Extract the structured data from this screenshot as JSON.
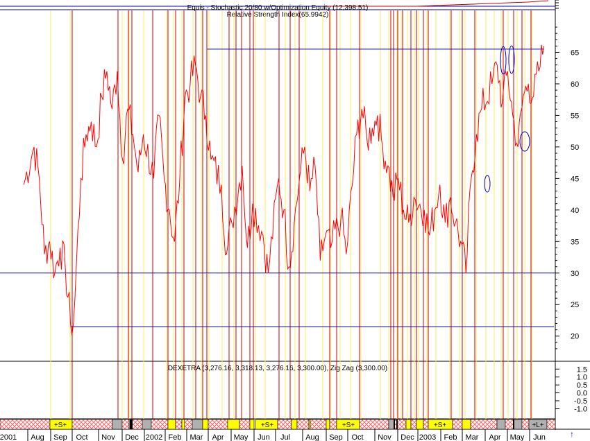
{
  "header": {
    "top_caption": "Equis - Stochastic 20/80 w/Optimization Equity (12,398.51)",
    "title": "Relative Strength Index(65.9942)"
  },
  "lower_caption": "DEXETRA (3,276.16, 3,318.13, 3,276.16, 3,300.00), Zig Zag (3,300.00)",
  "x_axis": {
    "labels": [
      "2001",
      "Aug",
      "Sep",
      "Oct",
      "Nov",
      "Dec",
      "2002",
      "Feb",
      "Mar",
      "Apr",
      "May",
      "Jun",
      "Jul",
      "Aug",
      "Sep",
      "Oct",
      "Nov",
      "Dec",
      "2003",
      "Feb",
      "Mar",
      "Apr",
      "May",
      "Jun"
    ],
    "nav_arrow": "↑"
  },
  "colors": {
    "rsi": "#ff0000",
    "level_lines": "#0000aa",
    "sell_lines": "#cc0000",
    "buy_lines": "#ffee55",
    "yellow_box": "#ffff00",
    "gray_box": "#b0b0b0",
    "hatch": "#ff6666"
  },
  "chart_data": [
    {
      "type": "line",
      "title": "Relative Strength Index(65.9942)",
      "xlabel": "",
      "ylabel": "",
      "x_range": [
        "2001-07",
        "2003-06"
      ],
      "ylim": [
        17,
        70
      ],
      "y_ticks": [
        20,
        25,
        30,
        35,
        40,
        45,
        50,
        55,
        60,
        65
      ],
      "reference_lines": [
        30,
        65.5,
        21.5
      ],
      "series": [
        {
          "x": [
            "2001-07-16",
            "2001-07-30",
            "2001-08-06",
            "2001-08-13",
            "2001-08-20",
            "2001-08-27",
            "2001-09-03",
            "2001-09-10",
            "2001-09-17",
            "2001-09-21",
            "2001-10-01",
            "2001-10-08",
            "2001-10-15",
            "2001-10-22",
            "2001-10-29",
            "2001-11-05",
            "2001-11-12",
            "2001-11-19",
            "2001-11-26",
            "2001-12-03",
            "2001-12-10",
            "2001-12-17",
            "2001-12-24",
            "2002-01-07",
            "2002-01-14",
            "2002-01-21",
            "2002-01-28",
            "2002-02-04",
            "2002-02-11",
            "2002-02-18",
            "2002-02-25",
            "2002-03-04",
            "2002-03-11",
            "2002-03-18",
            "2002-03-25",
            "2002-04-08",
            "2002-04-15",
            "2002-04-22",
            "2002-05-06",
            "2002-05-13",
            "2002-05-20",
            "2002-06-03",
            "2002-06-10",
            "2002-06-24",
            "2002-07-01",
            "2002-07-08",
            "2002-07-15",
            "2002-07-22",
            "2002-07-29",
            "2002-08-05",
            "2002-08-12",
            "2002-08-19",
            "2002-08-26",
            "2002-09-02",
            "2002-09-16",
            "2002-09-23",
            "2002-10-07",
            "2002-10-14",
            "2002-10-21",
            "2002-10-28",
            "2002-11-04",
            "2002-11-11",
            "2002-11-18",
            "2002-11-25",
            "2002-12-02",
            "2002-12-09",
            "2002-12-16",
            "2002-12-23",
            "2003-01-06",
            "2003-01-13",
            "2003-01-20",
            "2003-01-27",
            "2003-02-03",
            "2003-02-10",
            "2003-02-17",
            "2003-02-24",
            "2003-03-03",
            "2003-03-10",
            "2003-03-17",
            "2003-03-24",
            "2003-04-07",
            "2003-04-14",
            "2003-04-21",
            "2003-04-28",
            "2003-05-05",
            "2003-05-12",
            "2003-05-19",
            "2003-05-26",
            "2003-06-02",
            "2003-06-09",
            "2003-06-16"
          ],
          "values": [
            44,
            50,
            45,
            33,
            35,
            30,
            34,
            31,
            22,
            22,
            45,
            52,
            54,
            50,
            58,
            62,
            56,
            62,
            48,
            56,
            52,
            46,
            52,
            45,
            55,
            45,
            40,
            35,
            45,
            58,
            60,
            63,
            58,
            55,
            48,
            44,
            33,
            38,
            47,
            34,
            41,
            36,
            30,
            45,
            40,
            31,
            38,
            45,
            50,
            43,
            47,
            32,
            36,
            34,
            39,
            33,
            52,
            56,
            51,
            53,
            55,
            50,
            47,
            42,
            45,
            40,
            38,
            42,
            40,
            36,
            40,
            44,
            38,
            42,
            38,
            35,
            30,
            45,
            52,
            56,
            60,
            63,
            57,
            62,
            55,
            50,
            58,
            60,
            58,
            62,
            66
          ]
        }
      ]
    },
    {
      "type": "line",
      "title": "DEXETRA (3,276.16, 3,318.13, 3,276.16, 3,300.00), Zig Zag (3,300.00)",
      "xlabel": "",
      "ylabel": "",
      "ylim": [
        -1.2,
        1.6
      ],
      "y_ticks": [
        1.5,
        1.0,
        0.5,
        0.0,
        -0.5,
        -1.0
      ],
      "y_tick_labels": [
        "1.5",
        "1.0",
        "0.5",
        "0.0",
        "-0.5",
        "-1.0"
      ],
      "series": []
    }
  ],
  "bottom_bar": {
    "labels": [
      "+S+",
      "+S+",
      "+S+",
      "+S+",
      "+L+"
    ]
  }
}
